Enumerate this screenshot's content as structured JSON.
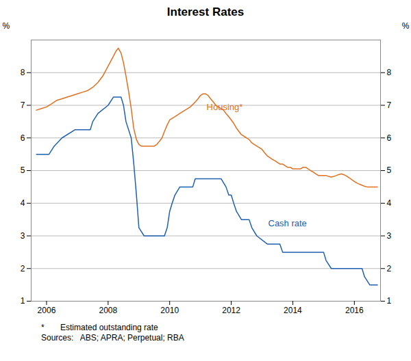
{
  "chart_data": {
    "type": "line",
    "title": "Interest Rates",
    "xlim": [
      2005.5,
      2016.85
    ],
    "xticks": [
      2006,
      2008,
      2010,
      2012,
      2014,
      2016
    ],
    "ylim": [
      1,
      9
    ],
    "yticks": [
      1,
      2,
      3,
      4,
      5,
      6,
      7,
      8
    ],
    "y2lim": [
      1,
      9
    ],
    "y2ticks": [
      1,
      2,
      3,
      4,
      5,
      6,
      7,
      8
    ],
    "ylabel": "%",
    "y2label": "%",
    "grid": true,
    "series": [
      {
        "color": "#E07020",
        "x": [
          2005.67,
          2005.83,
          2006.0,
          2006.17,
          2006.33,
          2006.5,
          2006.67,
          2006.83,
          2007.0,
          2007.17,
          2007.33,
          2007.5,
          2007.67,
          2007.83,
          2008.0,
          2008.17,
          2008.25,
          2008.33,
          2008.42,
          2008.5,
          2008.58,
          2008.67,
          2008.75,
          2008.83,
          2008.92,
          2009.0,
          2009.08,
          2009.25,
          2009.5,
          2009.58,
          2009.67,
          2009.75,
          2009.83,
          2009.92,
          2010.0,
          2010.08,
          2010.17,
          2010.25,
          2010.33,
          2010.5,
          2010.67,
          2010.83,
          2010.92,
          2011.0,
          2011.08,
          2011.17,
          2011.25,
          2011.33,
          2011.42,
          2011.5,
          2011.58,
          2011.67,
          2011.75,
          2011.83,
          2011.92,
          2012.0,
          2012.08,
          2012.17,
          2012.25,
          2012.33,
          2012.5,
          2012.58,
          2012.67,
          2012.75,
          2012.83,
          2012.92,
          2013.0,
          2013.08,
          2013.17,
          2013.25,
          2013.33,
          2013.42,
          2013.5,
          2013.58,
          2013.67,
          2013.75,
          2013.83,
          2013.92,
          2014.0,
          2014.08,
          2014.17,
          2014.25,
          2014.33,
          2014.42,
          2014.5,
          2014.58,
          2014.67,
          2014.75,
          2014.83,
          2014.92,
          2015.0,
          2015.08,
          2015.17,
          2015.25,
          2015.33,
          2015.42,
          2015.5,
          2015.58,
          2015.67,
          2015.75,
          2015.83,
          2015.92,
          2016.0,
          2016.08,
          2016.17,
          2016.25,
          2016.33,
          2016.42,
          2016.5,
          2016.58,
          2016.67,
          2016.75
        ],
        "values": [
          6.85,
          6.9,
          6.95,
          7.05,
          7.15,
          7.2,
          7.25,
          7.3,
          7.35,
          7.4,
          7.45,
          7.55,
          7.7,
          7.9,
          8.2,
          8.5,
          8.65,
          8.75,
          8.6,
          8.3,
          7.9,
          7.4,
          6.9,
          6.3,
          5.95,
          5.8,
          5.75,
          5.75,
          5.75,
          5.8,
          5.9,
          6.0,
          6.2,
          6.4,
          6.55,
          6.6,
          6.65,
          6.7,
          6.75,
          6.85,
          6.95,
          7.1,
          7.2,
          7.3,
          7.35,
          7.35,
          7.3,
          7.2,
          7.1,
          7.0,
          6.95,
          6.9,
          6.85,
          6.75,
          6.65,
          6.55,
          6.45,
          6.3,
          6.2,
          6.1,
          6.0,
          5.95,
          5.85,
          5.8,
          5.75,
          5.7,
          5.65,
          5.55,
          5.45,
          5.4,
          5.35,
          5.3,
          5.25,
          5.2,
          5.2,
          5.15,
          5.1,
          5.1,
          5.05,
          5.05,
          5.05,
          5.05,
          5.1,
          5.1,
          5.05,
          5.0,
          4.95,
          4.9,
          4.85,
          4.85,
          4.85,
          4.85,
          4.82,
          4.8,
          4.82,
          4.85,
          4.88,
          4.9,
          4.87,
          4.83,
          4.78,
          4.72,
          4.67,
          4.62,
          4.58,
          4.55,
          4.52,
          4.5,
          4.5,
          4.5,
          4.5,
          4.5
        ]
      },
      {
        "color": "#2060B0",
        "x": [
          2005.67,
          2005.92,
          2006.08,
          2006.25,
          2006.5,
          2006.92,
          2007.42,
          2007.5,
          2007.67,
          2008.0,
          2008.17,
          2008.42,
          2008.5,
          2008.58,
          2008.75,
          2008.83,
          2008.92,
          2009.0,
          2009.17,
          2009.83,
          2009.92,
          2010.0,
          2010.08,
          2010.17,
          2010.33,
          2010.75,
          2010.83,
          2011.67,
          2011.83,
          2011.92,
          2012.0,
          2012.08,
          2012.17,
          2012.33,
          2012.58,
          2012.67,
          2012.83,
          2013.17,
          2013.58,
          2013.67,
          2015.0,
          2015.08,
          2015.25,
          2016.25,
          2016.33,
          2016.5,
          2016.75
        ],
        "values": [
          5.5,
          5.5,
          5.5,
          5.75,
          6.0,
          6.25,
          6.25,
          6.5,
          6.75,
          7.0,
          7.25,
          7.25,
          7.0,
          6.5,
          6.0,
          5.25,
          4.25,
          3.25,
          3.0,
          3.0,
          3.25,
          3.75,
          4.0,
          4.25,
          4.5,
          4.5,
          4.75,
          4.75,
          4.5,
          4.25,
          4.25,
          4.0,
          3.75,
          3.5,
          3.5,
          3.25,
          3.0,
          2.75,
          2.75,
          2.5,
          2.5,
          2.25,
          2.0,
          2.0,
          1.75,
          1.5,
          1.5
        ]
      }
    ],
    "annotations": [
      {
        "text": "Housing*",
        "x": 2011.2,
        "y": 6.85,
        "color": "#E07020"
      },
      {
        "text": "Cash rate",
        "x": 2013.2,
        "y": 3.3,
        "color": "#2060B0"
      }
    ],
    "notes": [
      "*       Estimated outstanding rate",
      "Sources:   ABS; APRA; Perpetual; RBA"
    ]
  }
}
